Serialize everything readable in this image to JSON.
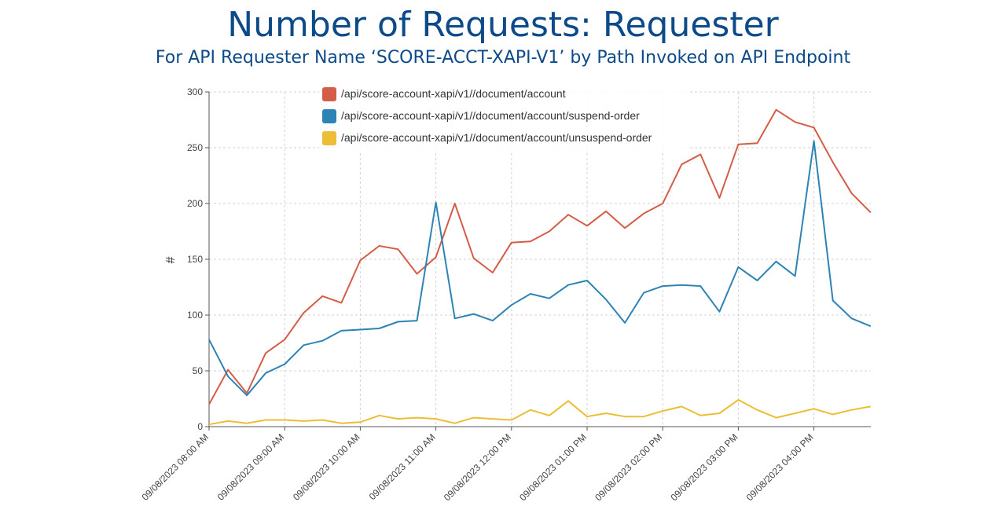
{
  "title": "Number of Requests: Requester",
  "subtitle": "For API Requester Name ‘SCORE-ACCT-XAPI-V1’ by Path Invoked on API Endpoint",
  "chart_data": {
    "type": "line",
    "title": "Number of Requests: Requester",
    "subtitle": "For API Requester Name ‘SCORE-ACCT-XAPI-V1’ by Path Invoked on API Endpoint",
    "xlabel": "",
    "ylabel": "#",
    "ylim": [
      0,
      300
    ],
    "yticks": [
      0,
      50,
      100,
      150,
      200,
      250,
      300
    ],
    "xticks": [
      "09/08/2023 08:00 AM",
      "09/08/2023 09:00 AM",
      "09/08/2023 10:00 AM",
      "09/08/2023 11:00 AM",
      "09/08/2023 12:00 PM",
      "09/08/2023 01:00 PM",
      "09/08/2023 02:00 PM",
      "09/08/2023 03:00 PM",
      "09/08/2023 04:00 PM"
    ],
    "x": [
      "09/08/2023 08:00 AM",
      "09/08/2023 08:15 AM",
      "09/08/2023 08:30 AM",
      "09/08/2023 08:45 AM",
      "09/08/2023 09:00 AM",
      "09/08/2023 09:15 AM",
      "09/08/2023 09:30 AM",
      "09/08/2023 09:45 AM",
      "09/08/2023 10:00 AM",
      "09/08/2023 10:15 AM",
      "09/08/2023 10:30 AM",
      "09/08/2023 10:45 AM",
      "09/08/2023 11:00 AM",
      "09/08/2023 11:15 AM",
      "09/08/2023 11:30 AM",
      "09/08/2023 11:45 AM",
      "09/08/2023 12:00 PM",
      "09/08/2023 12:15 PM",
      "09/08/2023 12:30 PM",
      "09/08/2023 12:45 PM",
      "09/08/2023 01:00 PM",
      "09/08/2023 01:15 PM",
      "09/08/2023 01:30 PM",
      "09/08/2023 01:45 PM",
      "09/08/2023 02:00 PM",
      "09/08/2023 02:15 PM",
      "09/08/2023 02:30 PM",
      "09/08/2023 02:45 PM",
      "09/08/2023 03:00 PM",
      "09/08/2023 03:15 PM",
      "09/08/2023 03:30 PM",
      "09/08/2023 03:45 PM",
      "09/08/2023 04:00 PM",
      "09/08/2023 04:15 PM",
      "09/08/2023 04:30 PM",
      "09/08/2023 04:45 PM"
    ],
    "series": [
      {
        "name": "/api/score-account-xapi/v1//document/account",
        "color": "#d45d47",
        "values": [
          20,
          51,
          30,
          66,
          78,
          102,
          117,
          111,
          149,
          162,
          159,
          137,
          152,
          200,
          151,
          138,
          165,
          166,
          175,
          190,
          180,
          193,
          178,
          191,
          200,
          235,
          244,
          205,
          253,
          254,
          284,
          273,
          268,
          237,
          209,
          192
        ]
      },
      {
        "name": "/api/score-account-xapi/v1//document/account/suspend-order",
        "color": "#2d84b4",
        "values": [
          78,
          45,
          28,
          48,
          56,
          73,
          77,
          86,
          87,
          88,
          94,
          95,
          201,
          97,
          101,
          95,
          109,
          119,
          115,
          127,
          131,
          114,
          93,
          120,
          126,
          127,
          126,
          103,
          143,
          131,
          148,
          135,
          256,
          113,
          97,
          90
        ]
      },
      {
        "name": "/api/score-account-xapi/v1//document/account/unsuspend-order",
        "color": "#ecbd35",
        "values": [
          2,
          5,
          3,
          6,
          6,
          5,
          6,
          3,
          4,
          10,
          7,
          8,
          7,
          3,
          8,
          7,
          6,
          15,
          10,
          23,
          9,
          12,
          9,
          9,
          14,
          18,
          10,
          12,
          24,
          15,
          8,
          12,
          16,
          11,
          15,
          18
        ]
      }
    ],
    "grid": true,
    "legend_position": "top-center"
  }
}
